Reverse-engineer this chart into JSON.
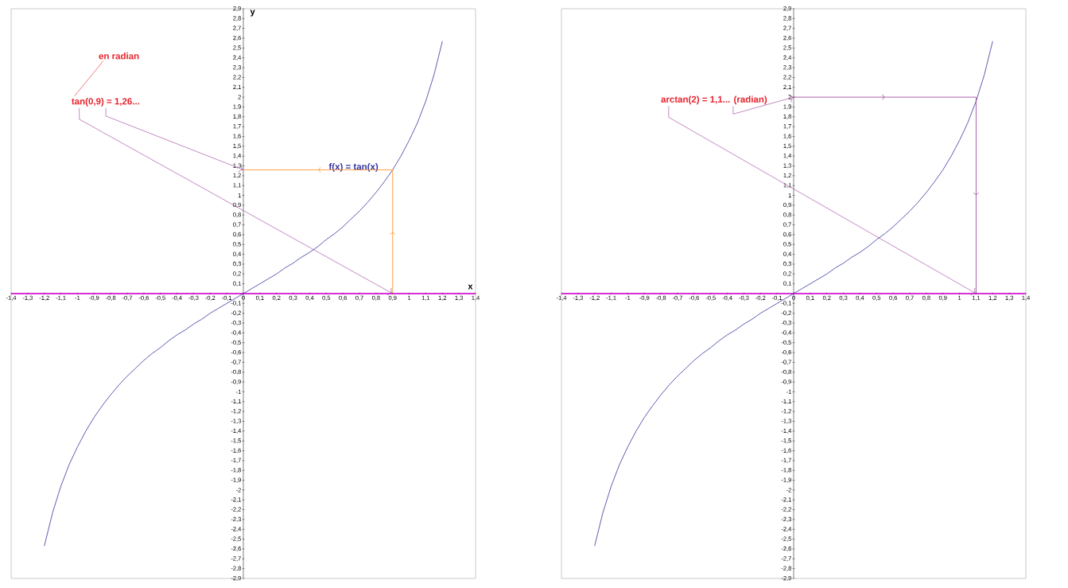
{
  "chart_data": [
    {
      "type": "line",
      "xlabel": "x",
      "ylabel": "y",
      "xlim": [
        -1.4,
        1.4
      ],
      "ylim": [
        -2.9,
        2.9
      ],
      "xticks": [
        {
          "value": -1.4,
          "label": "-1,4"
        },
        {
          "value": -1.3,
          "label": "-1,3"
        },
        {
          "value": -1.2,
          "label": "-1,2"
        },
        {
          "value": -1.1,
          "label": "-1,1"
        },
        -1,
        {
          "value": -0.9,
          "label": "-0,9"
        },
        {
          "value": -0.8,
          "label": "-0,8"
        },
        {
          "value": -0.7,
          "label": "-0,7"
        },
        {
          "value": -0.6,
          "label": "-0,6"
        },
        {
          "value": -0.5,
          "label": "-0,5"
        },
        {
          "value": -0.4,
          "label": "-0,4"
        },
        {
          "value": -0.3,
          "label": "-0,3"
        },
        {
          "value": -0.2,
          "label": "-0,2"
        },
        {
          "value": -0.1,
          "label": "-0,1"
        },
        0,
        {
          "value": 0.1,
          "label": "0,1"
        },
        {
          "value": 0.2,
          "label": "0,2"
        },
        {
          "value": 0.3,
          "label": "0,3"
        },
        {
          "value": 0.4,
          "label": "0,4"
        },
        {
          "value": 0.5,
          "label": "0,5"
        },
        {
          "value": 0.6,
          "label": "0,6"
        },
        {
          "value": 0.7,
          "label": "0,7"
        },
        {
          "value": 0.8,
          "label": "0,8"
        },
        {
          "value": 0.9,
          "label": "0,9"
        },
        1,
        {
          "value": 1.1,
          "label": "1,1"
        },
        {
          "value": 1.2,
          "label": "1,2"
        },
        {
          "value": 1.3,
          "label": "1,3"
        },
        {
          "value": 1.4,
          "label": "1,4"
        }
      ],
      "yticks": [
        {
          "value": -2.9,
          "label": "-2,9"
        },
        {
          "value": -2.8,
          "label": "-2,8"
        },
        {
          "value": -2.7,
          "label": "-2,7"
        },
        {
          "value": -2.6,
          "label": "-2,6"
        },
        {
          "value": -2.5,
          "label": "-2,5"
        },
        {
          "value": -2.4,
          "label": "-2,4"
        },
        {
          "value": -2.3,
          "label": "-2,3"
        },
        {
          "value": -2.2,
          "label": "-2,2"
        },
        {
          "value": -2.1,
          "label": "-2,1"
        },
        -2,
        {
          "value": -1.9,
          "label": "-1,9"
        },
        {
          "value": -1.8,
          "label": "-1,8"
        },
        {
          "value": -1.7,
          "label": "-1,7"
        },
        {
          "value": -1.6,
          "label": "-1,6"
        },
        {
          "value": -1.5,
          "label": "-1,5"
        },
        {
          "value": -1.4,
          "label": "-1,4"
        },
        {
          "value": -1.3,
          "label": "-1,3"
        },
        {
          "value": -1.2,
          "label": "-1,2"
        },
        {
          "value": -1.1,
          "label": "-1,1"
        },
        -1,
        {
          "value": -0.9,
          "label": "-0,9"
        },
        {
          "value": -0.8,
          "label": "-0,8"
        },
        {
          "value": -0.7,
          "label": "-0,7"
        },
        {
          "value": -0.6,
          "label": "-0,6"
        },
        {
          "value": -0.5,
          "label": "-0,5"
        },
        {
          "value": -0.4,
          "label": "-0,4"
        },
        {
          "value": -0.3,
          "label": "-0,3"
        },
        {
          "value": -0.2,
          "label": "-0,2"
        },
        {
          "value": -0.1,
          "label": "-0,1"
        },
        {
          "value": 0.1,
          "label": "0,1"
        },
        {
          "value": 0.2,
          "label": "0,2"
        },
        {
          "value": 0.3,
          "label": "0,3"
        },
        {
          "value": 0.4,
          "label": "0,4"
        },
        {
          "value": 0.5,
          "label": "0,5"
        },
        {
          "value": 0.6,
          "label": "0,6"
        },
        {
          "value": 0.7,
          "label": "0,7"
        },
        {
          "value": 0.8,
          "label": "0,8"
        },
        {
          "value": 0.9,
          "label": "0,9"
        },
        1,
        {
          "value": 1.1,
          "label": "1,1"
        },
        {
          "value": 1.2,
          "label": "1,2"
        },
        {
          "value": 1.3,
          "label": "1,3"
        },
        {
          "value": 1.4,
          "label": "1,4"
        },
        {
          "value": 1.5,
          "label": "1,5"
        },
        {
          "value": 1.6,
          "label": "1,6"
        },
        {
          "value": 1.7,
          "label": "1,7"
        },
        {
          "value": 1.8,
          "label": "1,8"
        },
        {
          "value": 1.9,
          "label": "1,9"
        },
        2,
        {
          "value": 2.1,
          "label": "2,1"
        },
        {
          "value": 2.2,
          "label": "2,2"
        },
        {
          "value": 2.3,
          "label": "2,3"
        },
        {
          "value": 2.4,
          "label": "2,4"
        },
        {
          "value": 2.5,
          "label": "2,5"
        },
        {
          "value": 2.6,
          "label": "2,6"
        },
        {
          "value": 2.7,
          "label": "2,7"
        },
        {
          "value": 2.8,
          "label": "2,8"
        },
        {
          "value": 2.9,
          "label": "2,9"
        }
      ],
      "series": [
        {
          "name": "f(x) = tan(x)",
          "color": "#3333a0",
          "x": [
            -1.2,
            -1.15,
            -1.1,
            -1.05,
            -1.0,
            -0.95,
            -0.9,
            -0.85,
            -0.8,
            -0.75,
            -0.7,
            -0.65,
            -0.6,
            -0.55,
            -0.5,
            -0.45,
            -0.4,
            -0.35,
            -0.3,
            -0.25,
            -0.2,
            -0.15,
            -0.1,
            -0.05,
            0,
            0.05,
            0.1,
            0.15,
            0.2,
            0.25,
            0.3,
            0.35,
            0.4,
            0.45,
            0.5,
            0.55,
            0.6,
            0.65,
            0.7,
            0.75,
            0.8,
            0.85,
            0.9,
            0.95,
            1.0,
            1.05,
            1.1,
            1.15,
            1.2
          ],
          "values": [
            -2.57,
            -2.23,
            -1.96,
            -1.74,
            -1.56,
            -1.4,
            -1.26,
            -1.14,
            -1.03,
            -0.93,
            -0.84,
            -0.76,
            -0.68,
            -0.61,
            -0.55,
            -0.48,
            -0.42,
            -0.37,
            -0.31,
            -0.26,
            -0.2,
            -0.15,
            -0.1,
            -0.05,
            0,
            0.05,
            0.1,
            0.15,
            0.2,
            0.26,
            0.31,
            0.37,
            0.42,
            0.48,
            0.55,
            0.61,
            0.68,
            0.76,
            0.84,
            0.93,
            1.03,
            1.14,
            1.26,
            1.4,
            1.56,
            1.74,
            1.96,
            2.23,
            2.57
          ]
        },
        {
          "color": "#ff8c1a",
          "x": [
            0.9,
            0.9
          ],
          "values": [
            0,
            1.26
          ]
        },
        {
          "color": "#ff8c1a",
          "x": [
            0.9,
            0
          ],
          "values": [
            1.26,
            1.26
          ]
        }
      ],
      "ref_lines": [
        {
          "axis": "y",
          "value": 0,
          "color": "#e000e0"
        }
      ],
      "annotations": [
        "en radian",
        {
          "text": "tan(0,9) = 1,26...",
          "x": 0.9,
          "y": 0
        }
      ]
    },
    {
      "type": "line",
      "xlim": [
        -1.4,
        1.4
      ],
      "ylim": [
        -2.9,
        2.9
      ],
      "xticks": [
        {
          "value": -1.4,
          "label": "-1,4"
        },
        {
          "value": -1.3,
          "label": "-1,3"
        },
        {
          "value": -1.2,
          "label": "-1,2"
        },
        {
          "value": -1.1,
          "label": "-1,1"
        },
        -1,
        {
          "value": -0.9,
          "label": "-0,9"
        },
        {
          "value": -0.8,
          "label": "-0,8"
        },
        {
          "value": -0.7,
          "label": "-0,7"
        },
        {
          "value": -0.6,
          "label": "-0,6"
        },
        {
          "value": -0.5,
          "label": "-0,5"
        },
        {
          "value": -0.4,
          "label": "-0,4"
        },
        {
          "value": -0.3,
          "label": "-0,3"
        },
        {
          "value": -0.2,
          "label": "-0,2"
        },
        {
          "value": -0.1,
          "label": "-0,1"
        },
        0,
        {
          "value": 0.1,
          "label": "0,1"
        },
        {
          "value": 0.2,
          "label": "0,2"
        },
        {
          "value": 0.3,
          "label": "0,3"
        },
        {
          "value": 0.4,
          "label": "0,4"
        },
        {
          "value": 0.5,
          "label": "0,5"
        },
        {
          "value": 0.6,
          "label": "0,6"
        },
        {
          "value": 0.7,
          "label": "0,7"
        },
        {
          "value": 0.8,
          "label": "0,8"
        },
        {
          "value": 0.9,
          "label": "0,9"
        },
        1,
        {
          "value": 1.1,
          "label": "1,1"
        },
        {
          "value": 1.2,
          "label": "1,2"
        },
        {
          "value": 1.3,
          "label": "1,3"
        },
        {
          "value": 1.4,
          "label": "1,4"
        }
      ],
      "yticks": [
        {
          "value": -2.9,
          "label": "-2,9"
        },
        {
          "value": -2.8,
          "label": "-2,8"
        },
        {
          "value": -2.7,
          "label": "-2,7"
        },
        {
          "value": -2.6,
          "label": "-2,6"
        },
        {
          "value": -2.5,
          "label": "-2,5"
        },
        {
          "value": -2.4,
          "label": "-2,4"
        },
        {
          "value": -2.3,
          "label": "-2,3"
        },
        {
          "value": -2.2,
          "label": "-2,2"
        },
        {
          "value": -2.1,
          "label": "-2,1"
        },
        -2,
        {
          "value": -1.9,
          "label": "-1,9"
        },
        {
          "value": -1.8,
          "label": "-1,8"
        },
        {
          "value": -1.7,
          "label": "-1,7"
        },
        {
          "value": -1.6,
          "label": "-1,6"
        },
        {
          "value": -1.5,
          "label": "-1,5"
        },
        {
          "value": -1.4,
          "label": "-1,4"
        },
        {
          "value": -1.3,
          "label": "-1,3"
        },
        {
          "value": -1.2,
          "label": "-1,2"
        },
        {
          "value": -1.1,
          "label": "-1,1"
        },
        -1,
        {
          "value": -0.9,
          "label": "-0,9"
        },
        {
          "value": -0.8,
          "label": "-0,8"
        },
        {
          "value": -0.7,
          "label": "-0,7"
        },
        {
          "value": -0.6,
          "label": "-0,6"
        },
        {
          "value": -0.5,
          "label": "-0,5"
        },
        {
          "value": -0.4,
          "label": "-0,4"
        },
        {
          "value": -0.3,
          "label": "-0,3"
        },
        {
          "value": -0.2,
          "label": "-0,2"
        },
        {
          "value": -0.1,
          "label": "-0,1"
        },
        {
          "value": 0.1,
          "label": "0,1"
        },
        {
          "value": 0.2,
          "label": "0,2"
        },
        {
          "value": 0.3,
          "label": "0,3"
        },
        {
          "value": 0.4,
          "label": "0,4"
        },
        {
          "value": 0.5,
          "label": "0,5"
        },
        {
          "value": 0.6,
          "label": "0,6"
        },
        {
          "value": 0.7,
          "label": "0,7"
        },
        {
          "value": 0.8,
          "label": "0,8"
        },
        {
          "value": 0.9,
          "label": "0,9"
        },
        1,
        {
          "value": 1.1,
          "label": "1,1"
        },
        {
          "value": 1.2,
          "label": "1,2"
        },
        {
          "value": 1.3,
          "label": "1,3"
        },
        {
          "value": 1.4,
          "label": "1,4"
        },
        {
          "value": 1.5,
          "label": "1,5"
        },
        {
          "value": 1.6,
          "label": "1,6"
        },
        {
          "value": 1.7,
          "label": "1,7"
        },
        {
          "value": 1.8,
          "label": "1,8"
        },
        {
          "value": 1.9,
          "label": "1,9"
        },
        2,
        {
          "value": 2.1,
          "label": "2,1"
        },
        {
          "value": 2.2,
          "label": "2,2"
        },
        {
          "value": 2.3,
          "label": "2,3"
        },
        {
          "value": 2.4,
          "label": "2,4"
        },
        {
          "value": 2.5,
          "label": "2,5"
        },
        {
          "value": 2.6,
          "label": "2,6"
        },
        {
          "value": 2.7,
          "label": "2,7"
        },
        {
          "value": 2.8,
          "label": "2,8"
        },
        {
          "value": 2.9,
          "label": "2,9"
        }
      ],
      "series": [
        {
          "color": "#3333a0",
          "x": [
            -1.2,
            -1.15,
            -1.1,
            -1.05,
            -1.0,
            -0.95,
            -0.9,
            -0.85,
            -0.8,
            -0.75,
            -0.7,
            -0.65,
            -0.6,
            -0.55,
            -0.5,
            -0.45,
            -0.4,
            -0.35,
            -0.3,
            -0.25,
            -0.2,
            -0.15,
            -0.1,
            -0.05,
            0,
            0.05,
            0.1,
            0.15,
            0.2,
            0.25,
            0.3,
            0.35,
            0.4,
            0.45,
            0.5,
            0.55,
            0.6,
            0.65,
            0.7,
            0.75,
            0.8,
            0.85,
            0.9,
            0.95,
            1.0,
            1.05,
            1.1,
            1.15,
            1.2
          ],
          "values": [
            -2.57,
            -2.23,
            -1.96,
            -1.74,
            -1.56,
            -1.4,
            -1.26,
            -1.14,
            -1.03,
            -0.93,
            -0.84,
            -0.76,
            -0.68,
            -0.61,
            -0.55,
            -0.48,
            -0.42,
            -0.37,
            -0.31,
            -0.26,
            -0.2,
            -0.15,
            -0.1,
            -0.05,
            0,
            0.05,
            0.1,
            0.15,
            0.2,
            0.26,
            0.31,
            0.37,
            0.42,
            0.48,
            0.55,
            0.61,
            0.68,
            0.76,
            0.84,
            0.93,
            1.03,
            1.14,
            1.26,
            1.4,
            1.56,
            1.74,
            1.96,
            2.23,
            2.57
          ]
        },
        {
          "color": "#9a3a9a",
          "x": [
            0,
            1.1
          ],
          "values": [
            2,
            2
          ]
        },
        {
          "color": "#9a3a9a",
          "x": [
            1.1,
            1.1
          ],
          "values": [
            2,
            0
          ]
        }
      ],
      "ref_lines": [
        {
          "axis": "y",
          "value": 0,
          "color": "#e000e0"
        }
      ],
      "annotations": [
        {
          "text": "arctan(2) = 1,1... (radian)",
          "x": 1.1,
          "y": 0
        }
      ]
    }
  ]
}
